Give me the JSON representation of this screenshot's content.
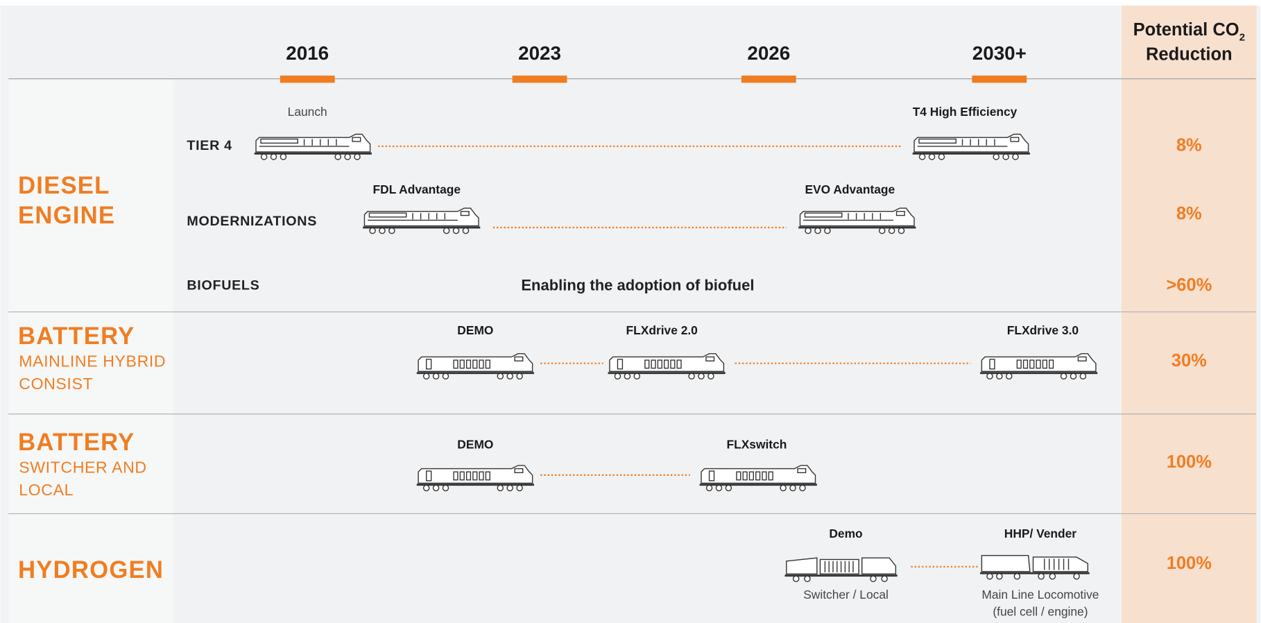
{
  "header": {
    "years": [
      "2016",
      "2023",
      "2026",
      "2030+"
    ],
    "reduction_title": "Potential CO",
    "reduction_subscript": "2",
    "reduction_title_2": "Reduction"
  },
  "sections": [
    {
      "title_lines": [
        "DIESEL",
        "ENGINE"
      ]
    },
    {
      "title_lines": [
        "BATTERY"
      ],
      "subtitle_lines": [
        "MAINLINE HYBRID",
        "CONSIST"
      ]
    },
    {
      "title_lines": [
        "BATTERY"
      ],
      "subtitle_lines": [
        "SWITCHER AND",
        "LOCAL"
      ]
    },
    {
      "title_lines": [
        "HYDROGEN"
      ]
    }
  ],
  "rows": [
    {
      "label": "TIER 4",
      "milestones": [
        {
          "label": "Launch"
        },
        {
          "label": "T4 High Efficiency"
        }
      ],
      "reduction": "8%"
    },
    {
      "label": "MODERNIZATIONS",
      "milestones": [
        {
          "label": "FDL Advantage"
        },
        {
          "label": "EVO Advantage"
        }
      ],
      "reduction": "8%"
    },
    {
      "label": "BIOFUELS",
      "note": "Enabling the adoption of biofuel",
      "reduction": ">60%"
    },
    {
      "milestones": [
        {
          "label": "DEMO"
        },
        {
          "label": "FLXdrive 2.0"
        },
        {
          "label": "FLXdrive 3.0"
        }
      ],
      "reduction": "30%"
    },
    {
      "milestones": [
        {
          "label": "DEMO"
        },
        {
          "label": "FLXswitch"
        }
      ],
      "reduction": "100%"
    },
    {
      "milestones": [
        {
          "label": "Demo",
          "caption_lines": [
            "Switcher / Local"
          ]
        },
        {
          "label": "HHP/ Vender",
          "caption_lines": [
            "Main Line Locomotive",
            "(fuel cell / engine)"
          ]
        }
      ],
      "reduction": "100%"
    }
  ]
}
